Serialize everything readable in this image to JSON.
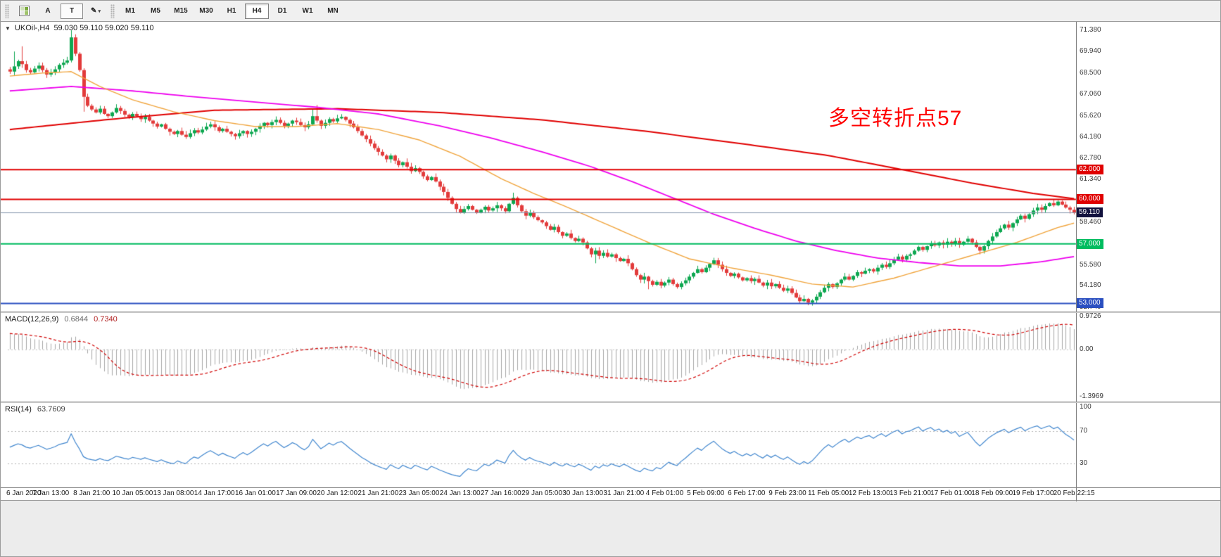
{
  "toolbar": {
    "buttons": {
      "cursor_label": "A",
      "text_label": "T",
      "draw_glyph": "✎",
      "caret_glyph": "▾"
    },
    "timeframes": [
      "M1",
      "M5",
      "M15",
      "M30",
      "H1",
      "H4",
      "D1",
      "W1",
      "MN"
    ],
    "active_timeframe": "H4"
  },
  "chart": {
    "title": "UKOil-,H4",
    "quote": "59.030 59.110 59.020 59.110",
    "annotation": {
      "text": "多空转折点57",
      "color": "#FF0000"
    }
  },
  "macd": {
    "label": "MACD(12,26,9)",
    "value_main": "0.6844",
    "value_signal": "0.7340",
    "ticks": [
      {
        "label": "0.9726",
        "value": 0.9726
      },
      {
        "label": "0.00",
        "value": 0
      },
      {
        "label": "-1.3969",
        "value": -1.3969
      }
    ]
  },
  "rsi": {
    "label": "RSI(14)",
    "value": "63.7609",
    "ticks": [
      {
        "label": "100",
        "value": 100
      },
      {
        "label": "70",
        "value": 70
      },
      {
        "label": "30",
        "value": 30
      }
    ]
  },
  "chart_data": {
    "type": "candlestick",
    "symbol": "UKOil-",
    "timeframe": "H4",
    "title": "UKOil-,H4 59.030 59.110 59.020 59.110",
    "ylim": [
      52.45,
      71.95
    ],
    "up_color": "#0DA750",
    "down_color": "#E23B3B",
    "closes": [
      68.6,
      68.95,
      69.3,
      69.1,
      68.7,
      68.55,
      68.8,
      69.0,
      68.7,
      68.4,
      68.55,
      68.75,
      69.05,
      69.2,
      69.35,
      70.9,
      69.8,
      68.7,
      66.9,
      66.3,
      66.05,
      65.85,
      66.1,
      65.75,
      65.6,
      65.85,
      66.15,
      65.95,
      65.7,
      65.55,
      65.75,
      65.6,
      65.4,
      65.55,
      65.3,
      65.1,
      64.9,
      65.05,
      64.75,
      64.55,
      64.4,
      64.6,
      64.35,
      64.2,
      64.45,
      64.65,
      64.5,
      64.7,
      64.9,
      65.05,
      64.85,
      64.6,
      64.75,
      64.55,
      64.4,
      64.25,
      64.45,
      64.6,
      64.4,
      64.55,
      64.75,
      64.95,
      65.15,
      65.0,
      65.2,
      65.35,
      65.15,
      64.95,
      65.1,
      65.3,
      65.2,
      65.0,
      64.85,
      65.05,
      65.6,
      65.3,
      64.95,
      65.15,
      65.4,
      65.25,
      65.45,
      65.55,
      65.35,
      65.1,
      64.85,
      64.6,
      64.3,
      64.05,
      63.75,
      63.45,
      63.2,
      62.95,
      62.7,
      62.95,
      62.6,
      62.3,
      62.5,
      62.2,
      61.9,
      62.1,
      61.85,
      61.55,
      61.3,
      61.5,
      61.2,
      60.85,
      60.5,
      60.1,
      59.7,
      59.35,
      59.1,
      59.35,
      59.55,
      59.3,
      59.1,
      59.3,
      59.5,
      59.25,
      59.4,
      59.6,
      59.4,
      59.2,
      59.7,
      60.1,
      59.6,
      59.2,
      58.9,
      59.1,
      58.8,
      58.6,
      58.45,
      58.2,
      57.95,
      58.15,
      57.8,
      57.55,
      57.7,
      57.4,
      57.2,
      57.35,
      57.1,
      56.7,
      56.3,
      56.55,
      56.2,
      56.4,
      56.15,
      56.3,
      56.05,
      55.85,
      56.0,
      55.7,
      55.3,
      54.9,
      54.6,
      54.8,
      54.5,
      54.25,
      54.45,
      54.2,
      54.4,
      54.6,
      54.3,
      54.1,
      54.35,
      54.55,
      54.8,
      55.05,
      55.3,
      55.1,
      55.4,
      55.65,
      55.9,
      55.6,
      55.3,
      55.05,
      54.85,
      55.0,
      54.75,
      54.55,
      54.7,
      54.5,
      54.65,
      54.4,
      54.2,
      54.4,
      54.15,
      54.3,
      54.05,
      53.85,
      54.0,
      53.7,
      53.4,
      53.15,
      53.3,
      53.05,
      53.2,
      53.45,
      53.75,
      54.05,
      54.3,
      54.1,
      54.35,
      54.6,
      54.8,
      54.6,
      54.85,
      55.1,
      55.0,
      55.2,
      55.3,
      55.15,
      55.4,
      55.6,
      55.45,
      55.7,
      55.95,
      56.15,
      55.95,
      56.2,
      56.3,
      56.55,
      56.8,
      56.6,
      56.85,
      57.05,
      56.9,
      57.1,
      56.95,
      57.15,
      57.0,
      57.2,
      56.95,
      57.15,
      57.35,
      57.1,
      56.8,
      56.55,
      56.85,
      57.2,
      57.5,
      57.8,
      58.05,
      58.3,
      58.1,
      58.4,
      58.65,
      58.9,
      58.7,
      59.0,
      59.25,
      59.45,
      59.3,
      59.55,
      59.75,
      59.6,
      59.85,
      59.65,
      59.45,
      59.3,
      59.11
    ],
    "wick_overrides": {
      "1": {
        "high": 69.95
      },
      "3": {
        "high": 70.3
      },
      "15": {
        "high": 71.38
      },
      "18": {
        "low": 65.9
      },
      "74": {
        "high": 66.1
      },
      "75": {
        "high": 66.35
      },
      "123": {
        "high": 60.45
      },
      "143": {
        "low": 55.7
      },
      "156": {
        "low": 53.95
      },
      "195": {
        "low": 52.88
      },
      "196": {
        "low": 52.85
      },
      "237": {
        "low": 56.3
      }
    },
    "y_ticks": [
      {
        "label": "71.380",
        "price": 71.38
      },
      {
        "label": "69.940",
        "price": 69.94
      },
      {
        "label": "68.500",
        "price": 68.5
      },
      {
        "label": "67.060",
        "price": 67.06
      },
      {
        "label": "65.620",
        "price": 65.62
      },
      {
        "label": "64.180",
        "price": 64.18
      },
      {
        "label": "62.780",
        "price": 62.78
      },
      {
        "label": "61.340",
        "price": 61.34
      },
      {
        "label": "59.900",
        "price": 59.9
      },
      {
        "label": "58.460",
        "price": 58.46
      },
      {
        "label": "57.020",
        "price": 57.02
      },
      {
        "label": "55.580",
        "price": 55.58
      },
      {
        "label": "54.180",
        "price": 54.18
      },
      {
        "label": "52.740",
        "price": 52.74
      }
    ],
    "hlines": [
      {
        "price": 62.0,
        "label": "62.000",
        "color": "#E00000"
      },
      {
        "price": 60.0,
        "label": "60.000",
        "color": "#E00000"
      },
      {
        "price": 57.0,
        "label": "57.000",
        "color": "#00BC5F"
      },
      {
        "price": 53.0,
        "label": "53.000",
        "color": "#2A4FC0"
      }
    ],
    "bid": {
      "price": 59.11,
      "label": "59.110",
      "line_color": "#8A9BB0",
      "badge_color": "#12123E"
    },
    "moving_averages": [
      {
        "name": "ma-slow-red",
        "color": "#E00000",
        "points": [
          [
            0,
            64.7
          ],
          [
            25,
            65.4
          ],
          [
            50,
            66.0
          ],
          [
            80,
            66.1
          ],
          [
            105,
            65.85
          ],
          [
            130,
            65.35
          ],
          [
            155,
            64.6
          ],
          [
            180,
            63.7
          ],
          [
            200,
            62.95
          ],
          [
            220,
            61.9
          ],
          [
            235,
            61.1
          ],
          [
            250,
            60.4
          ],
          [
            260,
            60.05
          ]
        ]
      },
      {
        "name": "ma-mid-magenta",
        "color": "#EE00EE",
        "points": [
          [
            0,
            67.3
          ],
          [
            15,
            67.6
          ],
          [
            30,
            67.3
          ],
          [
            45,
            66.9
          ],
          [
            60,
            66.55
          ],
          [
            75,
            66.2
          ],
          [
            90,
            65.75
          ],
          [
            105,
            64.95
          ],
          [
            118,
            64.1
          ],
          [
            130,
            63.2
          ],
          [
            142,
            62.2
          ],
          [
            152,
            61.2
          ],
          [
            162,
            60.1
          ],
          [
            172,
            59.0
          ],
          [
            182,
            58.05
          ],
          [
            192,
            57.2
          ],
          [
            202,
            56.55
          ],
          [
            212,
            56.05
          ],
          [
            222,
            55.75
          ],
          [
            232,
            55.52
          ],
          [
            242,
            55.52
          ],
          [
            252,
            55.8
          ],
          [
            260,
            56.15
          ]
        ]
      },
      {
        "name": "ma-fast-orange",
        "color": "#F0A43C",
        "points": [
          [
            0,
            68.3
          ],
          [
            8,
            68.5
          ],
          [
            15,
            68.6
          ],
          [
            22,
            67.6
          ],
          [
            30,
            66.7
          ],
          [
            40,
            65.9
          ],
          [
            50,
            65.3
          ],
          [
            60,
            64.9
          ],
          [
            70,
            64.9
          ],
          [
            80,
            65.1
          ],
          [
            90,
            64.7
          ],
          [
            100,
            64.0
          ],
          [
            110,
            62.9
          ],
          [
            120,
            61.4
          ],
          [
            128,
            60.4
          ],
          [
            136,
            59.5
          ],
          [
            146,
            58.3
          ],
          [
            156,
            57.1
          ],
          [
            166,
            56.0
          ],
          [
            176,
            55.4
          ],
          [
            186,
            54.9
          ],
          [
            196,
            54.3
          ],
          [
            206,
            54.1
          ],
          [
            216,
            54.7
          ],
          [
            226,
            55.5
          ],
          [
            236,
            56.3
          ],
          [
            246,
            57.1
          ],
          [
            256,
            58.1
          ],
          [
            260,
            58.4
          ]
        ]
      }
    ],
    "macd": {
      "fast": 12,
      "slow": 26,
      "signal": 9,
      "ylim": [
        -1.55,
        1.08
      ],
      "hist_color": "#A6A6A6",
      "signal_color": "#D00000",
      "zero_color": "#C0C0C0"
    },
    "rsi": {
      "period": 14,
      "ylim": [
        0,
        105
      ],
      "levels": [
        70,
        30
      ],
      "line_color": "#4086CE",
      "level_color": "#B4B4B4"
    },
    "time_labels": [
      "6 Jan 2020",
      "7 Jan 13:00",
      "8 Jan 21:00",
      "10 Jan 05:00",
      "13 Jan 08:00",
      "14 Jan 17:00",
      "16 Jan 01:00",
      "17 Jan 09:00",
      "20 Jan 12:00",
      "21 Jan 21:00",
      "23 Jan 05:00",
      "24 Jan 13:00",
      "27 Jan 16:00",
      "29 Jan 05:00",
      "30 Jan 13:00",
      "31 Jan 21:00",
      "4 Feb 01:00",
      "5 Feb 09:00",
      "6 Feb 17:00",
      "9 Feb 23:00",
      "11 Feb 05:00",
      "12 Feb 13:00",
      "13 Feb 21:00",
      "17 Feb 01:00",
      "18 Feb 09:00",
      "19 Feb 17:00",
      "20 Feb 22:15"
    ],
    "label_every_bars": 10
  }
}
